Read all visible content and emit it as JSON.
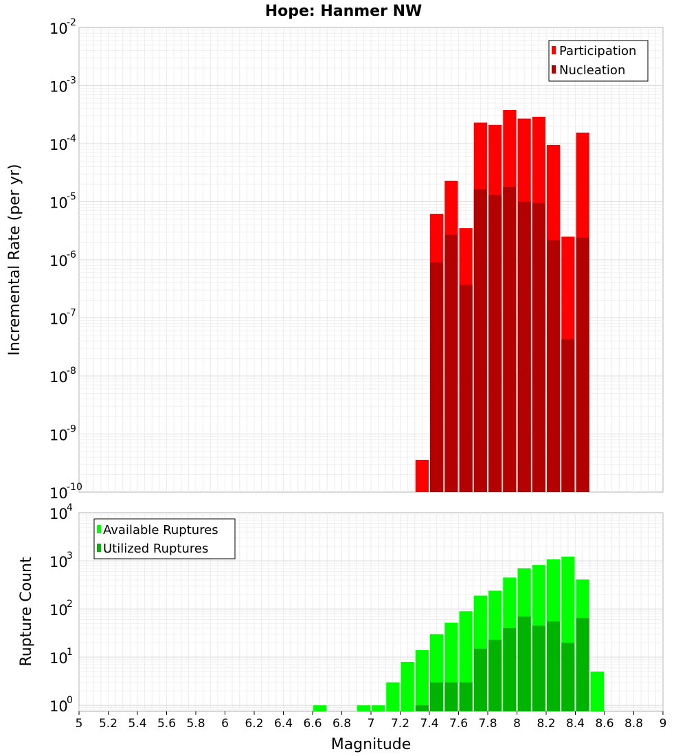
{
  "chart_data": [
    {
      "type": "bar",
      "title": "Hope: Hanmer NW",
      "xlabel": "",
      "ylabel": "Incremental Rate (per yr)",
      "xlim": [
        5,
        9
      ],
      "ylim": [
        1e-10,
        0.01
      ],
      "yscale": "log",
      "y_tick_labels": [
        {
          "base": "10",
          "exp": "-10",
          "value": 1e-10
        },
        {
          "base": "10",
          "exp": "-9",
          "value": 1e-09
        },
        {
          "base": "10",
          "exp": "-8",
          "value": 1e-08
        },
        {
          "base": "10",
          "exp": "-7",
          "value": 1e-07
        },
        {
          "base": "10",
          "exp": "-6",
          "value": 1e-06
        },
        {
          "base": "10",
          "exp": "-5",
          "value": 1e-05
        },
        {
          "base": "10",
          "exp": "-4",
          "value": 0.0001
        },
        {
          "base": "10",
          "exp": "-3",
          "value": 0.001
        },
        {
          "base": "10",
          "exp": "-2",
          "value": 0.01
        }
      ],
      "grid": true,
      "legend_position": "top-right",
      "overlay": true,
      "x": [
        7.35,
        7.45,
        7.55,
        7.65,
        7.75,
        7.85,
        7.95,
        8.05,
        8.15,
        8.25,
        8.35,
        8.45
      ],
      "series": [
        {
          "name": "Participation",
          "color": "#ff0000",
          "values": [
            3.6e-10,
            6.2e-06,
            2.3e-05,
            3.5e-06,
            0.00023,
            0.00021,
            0.00038,
            0.00027,
            0.00029,
            9.5e-05,
            2.5e-06,
            0.000155
          ]
        },
        {
          "name": "Nucleation",
          "color": "#b30000",
          "values": [
            null,
            9e-07,
            2.7e-06,
            3.7e-07,
            1.65e-05,
            1.3e-05,
            1.8e-05,
            1e-05,
            9.5e-06,
            2.2e-06,
            4.3e-08,
            2.4e-06
          ]
        }
      ]
    },
    {
      "type": "bar",
      "title": "",
      "xlabel": "Magnitude",
      "ylabel": "Rupture Count",
      "xlim": [
        5,
        9
      ],
      "ylim": [
        0.75,
        10000
      ],
      "yscale": "log",
      "y_tick_labels": [
        {
          "base": "10",
          "exp": "0",
          "value": 1
        },
        {
          "base": "10",
          "exp": "1",
          "value": 10
        },
        {
          "base": "10",
          "exp": "2",
          "value": 100
        },
        {
          "base": "10",
          "exp": "3",
          "value": 1000
        },
        {
          "base": "10",
          "exp": "4",
          "value": 10000
        }
      ],
      "x_tick_labels": [
        "5",
        "5.2",
        "5.4",
        "5.6",
        "5.8",
        "6",
        "6.2",
        "6.4",
        "6.6",
        "6.8",
        "7",
        "7.2",
        "7.4",
        "7.6",
        "7.8",
        "8",
        "8.2",
        "8.4",
        "8.6",
        "8.8",
        "9"
      ],
      "grid": true,
      "legend_position": "top-left",
      "overlay": true,
      "x": [
        6.65,
        6.95,
        7.05,
        7.15,
        7.25,
        7.35,
        7.45,
        7.55,
        7.65,
        7.75,
        7.85,
        7.95,
        8.05,
        8.15,
        8.25,
        8.35,
        8.45,
        8.55
      ],
      "series": [
        {
          "name": "Available Ruptures",
          "color": "#00ff00",
          "values": [
            1,
            1,
            1,
            3,
            8,
            14,
            30,
            52,
            90,
            190,
            240,
            450,
            700,
            820,
            1080,
            1230,
            410,
            5
          ]
        },
        {
          "name": "Utilized Ruptures",
          "color": "#00b300",
          "values": [
            null,
            null,
            null,
            null,
            null,
            1,
            3,
            3,
            3,
            15,
            23,
            40,
            70,
            45,
            55,
            20,
            65,
            null
          ]
        }
      ]
    }
  ]
}
